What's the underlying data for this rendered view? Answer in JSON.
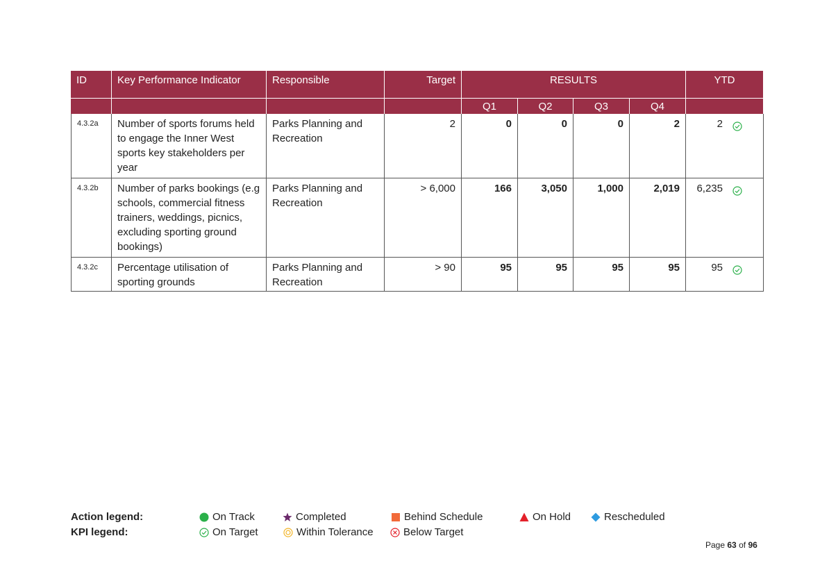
{
  "table": {
    "header": [
      "ID",
      "Key Performance Indicator",
      "Responsible",
      "Target",
      "RESULTS",
      "YTD"
    ],
    "quarters": [
      "Q1",
      "Q2",
      "Q3",
      "Q4"
    ],
    "rows": [
      {
        "id": "4.3.2a",
        "kpi": "Number of sports forums held to engage the Inner West sports key stakeholders per year",
        "responsible": "Parks Planning and Recreation",
        "target": "2",
        "results": [
          "0",
          "0",
          "0",
          "2"
        ],
        "ytd": "2"
      },
      {
        "id": "4.3.2b",
        "kpi": "Number of parks bookings (e.g schools, commercial fitness trainers, weddings, picnics, excluding sporting ground bookings)",
        "responsible": "Parks Planning and Recreation",
        "target": "> 6,000",
        "results": [
          "166",
          "3,050",
          "1,000",
          "2,019"
        ],
        "ytd": "6,235"
      },
      {
        "id": "4.3.2c",
        "kpi": "Percentage utilisation of sporting grounds",
        "responsible": "Parks Planning and Recreation",
        "target": "> 90",
        "results": [
          "95",
          "95",
          "95",
          "95"
        ],
        "ytd": "95"
      }
    ]
  },
  "legend": {
    "action": {
      "title": "Action legend:",
      "items": [
        "On Track",
        "Completed",
        "Behind Schedule",
        "On Hold",
        "Rescheduled"
      ]
    },
    "kpi": {
      "title": "KPI legend:",
      "items": [
        "On Target",
        "Within Tolerance",
        "Below Target"
      ]
    }
  },
  "footer": {
    "prefix": "Page",
    "page": "63",
    "separator": "of",
    "total": "96"
  }
}
